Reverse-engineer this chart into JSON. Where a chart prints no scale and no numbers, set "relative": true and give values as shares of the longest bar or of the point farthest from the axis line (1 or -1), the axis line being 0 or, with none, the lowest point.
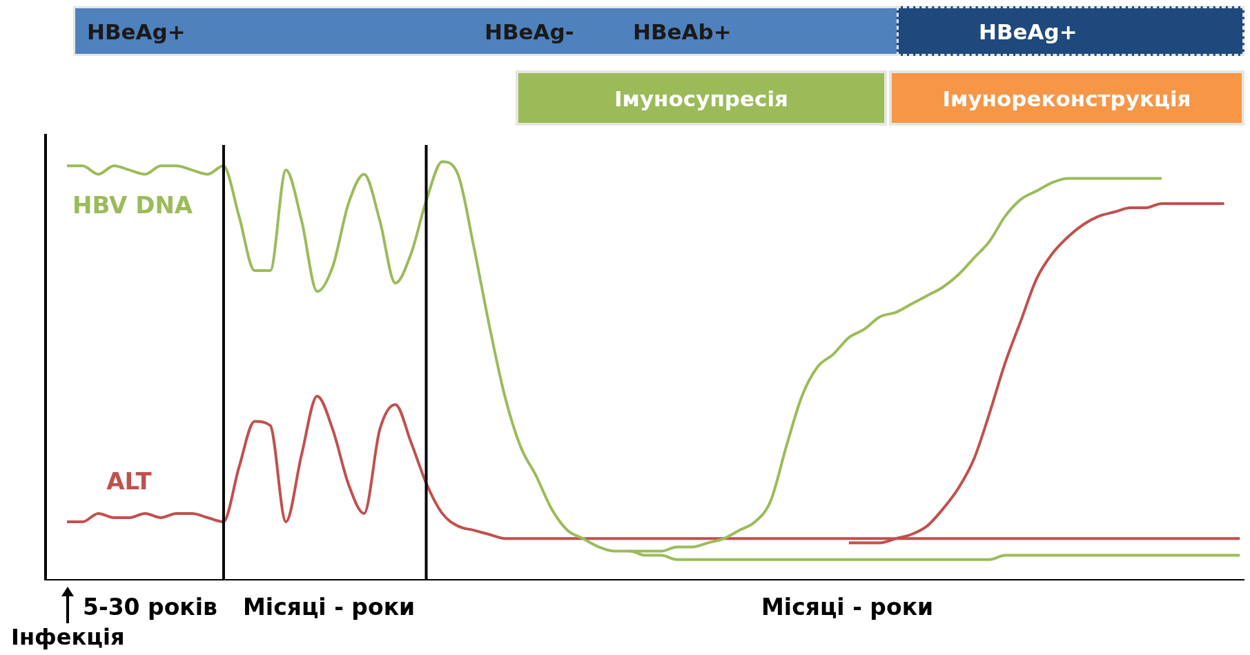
{
  "chart_data": {
    "type": "line",
    "relative": true,
    "legend": false,
    "grid": false,
    "marker": "none",
    "line_style": "solid",
    "categories": [
      null,
      null,
      null,
      null,
      null,
      null,
      null,
      null,
      null,
      null,
      null,
      null,
      null,
      null,
      null,
      null,
      null,
      null,
      null,
      null,
      null,
      null,
      null,
      null,
      null,
      null,
      null,
      null,
      null,
      null,
      null,
      null,
      null,
      null,
      null,
      null,
      null,
      null,
      null,
      null,
      null,
      null,
      null,
      null,
      null,
      null,
      null,
      null,
      null,
      null,
      null,
      null,
      null,
      null,
      null,
      null,
      null,
      null,
      null,
      null,
      null,
      null,
      null,
      null,
      null,
      null,
      null,
      null,
      null,
      null,
      null,
      null,
      null,
      null,
      null,
      null
    ],
    "series": [
      {
        "name": "HBV DNA",
        "color": "#9bbb59",
        "values": [
          0.99,
          0.99,
          0.97,
          0.99,
          0.98,
          0.97,
          0.99,
          0.99,
          0.98,
          0.97,
          0.99,
          0.87,
          0.74,
          0.74,
          0.98,
          0.86,
          0.69,
          0.75,
          0.9,
          0.97,
          0.86,
          0.71,
          0.78,
          0.91,
          1,
          0.97,
          0.8,
          0.61,
          0.44,
          0.32,
          0.25,
          0.17,
          0.12,
          0.1,
          0.08,
          0.07,
          0.07,
          0.06,
          0.06,
          0.05,
          0.05,
          0.05,
          0.05,
          0.05,
          0.05,
          0.05,
          0.05,
          0.05,
          0.05,
          0.05,
          0.05,
          0.05,
          0.05,
          0.05,
          0.05,
          0.05,
          0.05,
          0.05,
          0.05,
          0.05,
          0.06,
          0.06,
          0.06,
          0.06,
          0.06,
          0.06,
          0.06,
          0.06,
          0.06,
          0.06,
          0.06,
          0.06,
          0.06,
          0.06,
          0.06,
          0.06
        ]
      },
      {
        "color": "#9bbb59",
        "values": [
          null,
          null,
          null,
          null,
          null,
          null,
          null,
          null,
          null,
          null,
          null,
          null,
          null,
          null,
          null,
          null,
          null,
          null,
          null,
          null,
          null,
          null,
          null,
          null,
          null,
          null,
          null,
          null,
          null,
          null,
          null,
          null,
          null,
          null,
          null,
          null,
          0.07,
          0.07,
          0.07,
          0.08,
          0.08,
          0.09,
          0.1,
          0.12,
          0.14,
          0.19,
          0.32,
          0.44,
          0.51,
          0.54,
          0.58,
          0.6,
          0.63,
          0.64,
          0.66,
          0.68,
          0.7,
          0.73,
          0.77,
          0.81,
          0.87,
          0.91,
          0.93,
          0.95,
          0.96,
          0.96,
          0.96,
          0.96,
          0.96,
          0.96,
          0.96,
          null,
          null,
          null,
          null,
          null
        ]
      },
      {
        "name": "ALT",
        "color": "#c0504d",
        "values": [
          0.14,
          0.14,
          0.16,
          0.15,
          0.15,
          0.16,
          0.15,
          0.16,
          0.16,
          0.15,
          0.14,
          0.27,
          0.38,
          0.37,
          0.14,
          0.3,
          0.44,
          0.36,
          0.23,
          0.16,
          0.36,
          0.42,
          0.33,
          0.23,
          0.16,
          0.13,
          0.12,
          0.11,
          0.1,
          0.1,
          0.1,
          0.1,
          0.1,
          0.1,
          0.1,
          0.1,
          0.1,
          0.1,
          0.1,
          0.1,
          0.1,
          0.1,
          0.1,
          0.1,
          0.1,
          0.1,
          0.1,
          0.1,
          0.1,
          0.1,
          0.1,
          0.1,
          0.1,
          0.1,
          0.1,
          0.1,
          0.1,
          0.1,
          0.1,
          0.1,
          0.1,
          0.1,
          0.1,
          0.1,
          0.1,
          0.1,
          0.1,
          0.1,
          0.1,
          0.1,
          0.1,
          0.1,
          0.1,
          0.1,
          0.1,
          0.1
        ]
      },
      {
        "color": "#c0504d",
        "values": [
          null,
          null,
          null,
          null,
          null,
          null,
          null,
          null,
          null,
          null,
          null,
          null,
          null,
          null,
          null,
          null,
          null,
          null,
          null,
          null,
          null,
          null,
          null,
          null,
          null,
          null,
          null,
          null,
          null,
          null,
          null,
          null,
          null,
          null,
          null,
          null,
          null,
          null,
          null,
          null,
          null,
          null,
          null,
          null,
          null,
          null,
          null,
          null,
          null,
          null,
          0.09,
          0.09,
          0.09,
          0.1,
          0.11,
          0.13,
          0.17,
          0.22,
          0.29,
          0.4,
          0.52,
          0.62,
          0.72,
          0.78,
          0.82,
          0.85,
          0.87,
          0.88,
          0.89,
          0.89,
          0.9,
          0.9,
          0.9,
          0.9,
          0.9,
          null
        ]
      }
    ],
    "annotations": [
      "HBeAg+",
      "HBeAg-",
      "HBeAb+",
      "HBeAg+",
      "Імуносупресія",
      "Імунореконструкція",
      "5-30 років",
      "Місяці - роки",
      "Місяці - роки",
      "Інфекція"
    ]
  }
}
